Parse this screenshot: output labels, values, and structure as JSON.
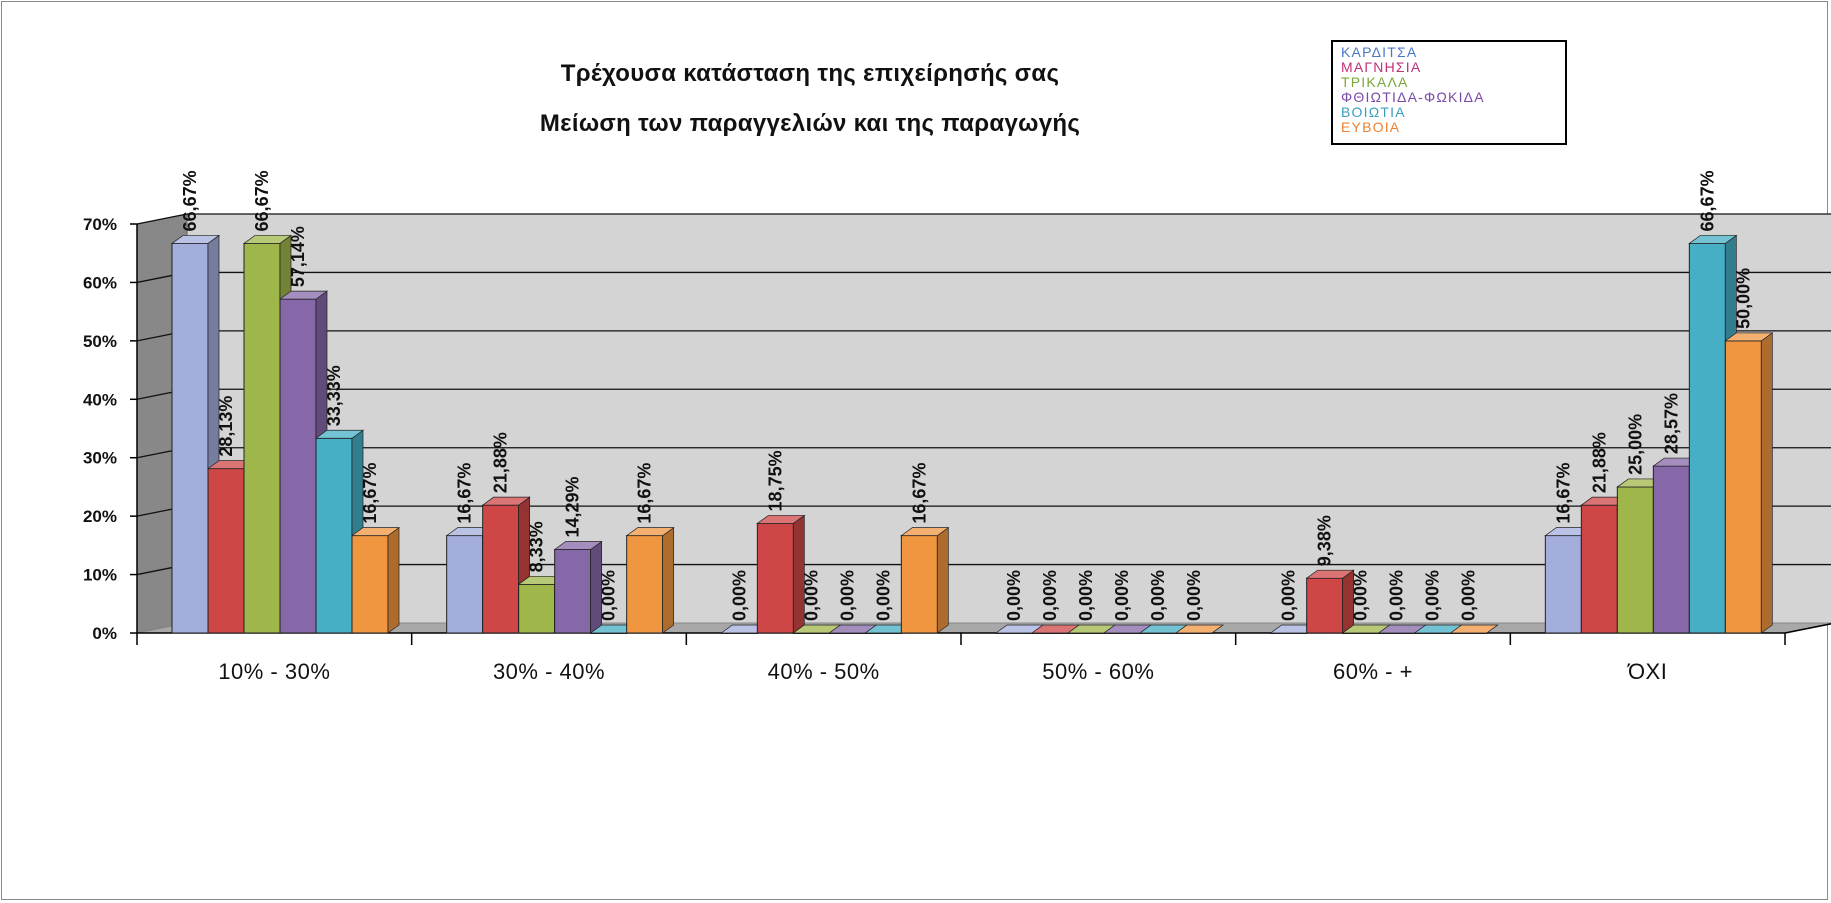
{
  "chart_data": {
    "type": "bar",
    "title": "Τρέχουσα κατάσταση της επιχείρησής σας",
    "subtitle": "Μείωση των παραγγελιών και της παραγωγής",
    "categories": [
      "10% - 30%",
      "30% - 40%",
      "40% - 50%",
      "50% - 60%",
      "60% - +",
      "ΌΧΙ"
    ],
    "ylim": [
      0,
      70
    ],
    "yticks": [
      "0%",
      "10%",
      "20%",
      "30%",
      "40%",
      "50%",
      "60%",
      "70%"
    ],
    "ytick_values": [
      0,
      10,
      20,
      30,
      40,
      50,
      60,
      70
    ],
    "grid": true,
    "legend_position": "top-right",
    "series": [
      {
        "name": "ΚΑΡΔΙΤΣΑ",
        "color": "#a3aedc",
        "values": [
          66.67,
          16.67,
          0,
          0,
          0,
          16.67
        ],
        "labels": [
          "66,67%",
          "16,67%",
          "0,00%",
          "0,00%",
          "0,00%",
          "16,67%"
        ]
      },
      {
        "name": "ΜΑΓΝΗΣΙΑ",
        "color": "#cf4646",
        "values": [
          28.13,
          21.88,
          18.75,
          0,
          9.38,
          21.88
        ],
        "labels": [
          "28,13%",
          "21,88%",
          "18,75%",
          "0,00%",
          "9,38%",
          "21,88%"
        ]
      },
      {
        "name": "ΤΡΙΚΑΛΑ",
        "color": "#9fb64a",
        "values": [
          66.67,
          8.33,
          0,
          0,
          0,
          25.0
        ],
        "labels": [
          "66,67%",
          "8,33%",
          "0,00%",
          "0,00%",
          "0,00%",
          "25,00%"
        ]
      },
      {
        "name": "ΦΘΙΩΤΙΔΑ-ΦΩΚΙΔΑ",
        "color": "#8668a8",
        "values": [
          57.14,
          14.29,
          0,
          0,
          0,
          28.57
        ],
        "labels": [
          "57,14%",
          "14,29%",
          "0,00%",
          "0,00%",
          "0,00%",
          "28,57%"
        ]
      },
      {
        "name": "ΒΟΙΩΤΙΑ",
        "color": "#46afc6",
        "values": [
          33.33,
          0,
          0,
          0,
          0,
          66.67
        ],
        "labels": [
          "33,33%",
          "0,00%",
          "0,00%",
          "0,00%",
          "0,00%",
          "66,67%"
        ]
      },
      {
        "name": "ΕΥΒΟΙΑ",
        "color": "#f09640",
        "values": [
          16.67,
          16.67,
          16.67,
          0,
          0,
          50.0
        ],
        "labels": [
          "16,67%",
          "16,67%",
          "16,67%",
          "0,00%",
          "0,00%",
          "50,00%"
        ]
      }
    ]
  }
}
